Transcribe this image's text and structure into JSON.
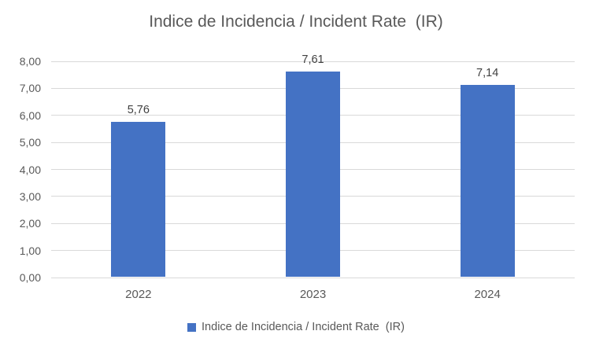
{
  "chart_data": {
    "type": "bar",
    "title": "Indice de Incidencia / Incident Rate  (IR)",
    "categories": [
      "2022",
      "2023",
      "2024"
    ],
    "values": [
      5.76,
      7.61,
      7.14
    ],
    "value_labels": [
      "5,76",
      "7,61",
      "7,14"
    ],
    "xlabel": "",
    "ylabel": "",
    "ylim": [
      0,
      8
    ],
    "ytick_step": 1,
    "ytick_labels": [
      "0,00",
      "1,00",
      "2,00",
      "3,00",
      "4,00",
      "5,00",
      "6,00",
      "7,00",
      "8,00"
    ],
    "grid": true,
    "legend": {
      "position": "bottom",
      "entries": [
        {
          "label": "Indice de Incidencia / Incident Rate  (IR)",
          "color": "#4472C4"
        }
      ]
    },
    "colors": {
      "bar": "#4472C4",
      "gridline": "#D9D9D9",
      "axis_line": "#D9D9D9",
      "title_text": "#595959",
      "tick_text": "#595959",
      "value_label_text": "#404040"
    }
  }
}
